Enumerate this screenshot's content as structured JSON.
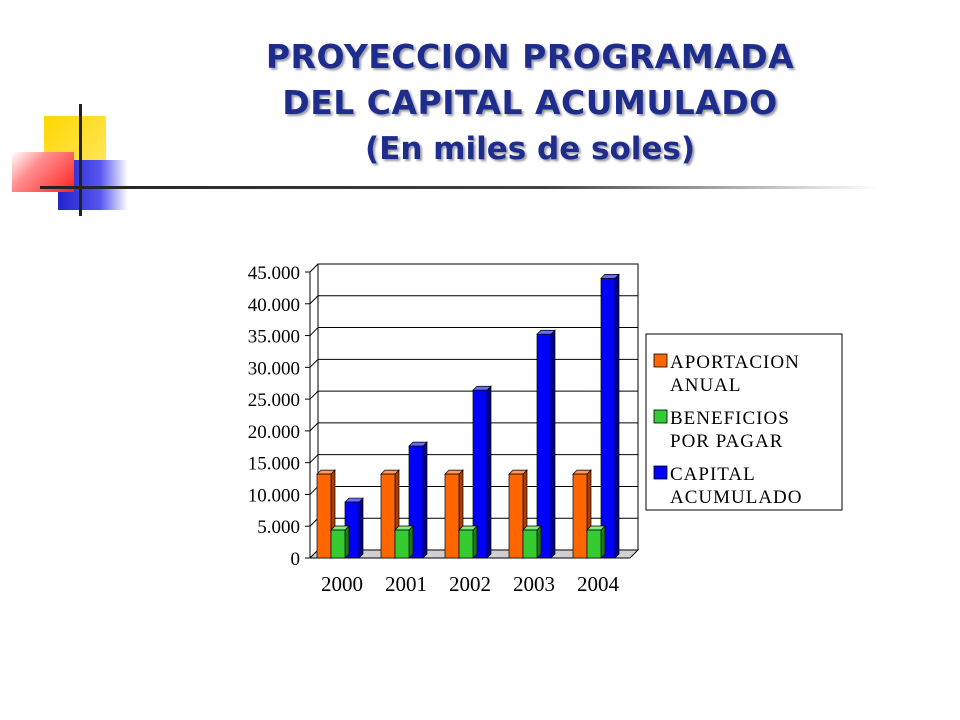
{
  "slide": {
    "title_line1": "PROYECCION PROGRAMADA",
    "title_line2": "DEL CAPITAL ACUMULADO",
    "title_line3": "(En miles de soles)"
  },
  "colors": {
    "title": "#1e2d8c",
    "aportacion": "#ff6600",
    "beneficios": "#33cc33",
    "capital": "#0000ff",
    "deco_yellow": "#ffd700",
    "deco_red": "#ff3333",
    "deco_blue": "#3333cc"
  },
  "chart_data": {
    "type": "bar",
    "title": "",
    "xlabel": "",
    "ylabel": "",
    "categories": [
      "2000",
      "2001",
      "2002",
      "2003",
      "2004"
    ],
    "series": [
      {
        "name": "APORTACION ANUAL",
        "values": [
          13200,
          13200,
          13200,
          13200,
          13200
        ]
      },
      {
        "name": "BENEFICIOS POR PAGAR",
        "values": [
          4400,
          4400,
          4400,
          4400,
          4400
        ]
      },
      {
        "name": "CAPITAL ACUMULADO",
        "values": [
          8800,
          17600,
          26400,
          35200,
          44000
        ]
      }
    ],
    "ylim": [
      0,
      45000
    ],
    "yticks": [
      "45.000",
      "40.000",
      "35.000",
      "30.000",
      "25.000",
      "20.000",
      "15.000",
      "10.000",
      "5.000",
      "0"
    ],
    "legend": {
      "position": "right",
      "entries": [
        {
          "line1": "APORTACION",
          "line2": "ANUAL"
        },
        {
          "line1": "BENEFICIOS",
          "line2": "POR PAGAR"
        },
        {
          "line1": "CAPITAL",
          "line2": "ACUMULADO"
        }
      ]
    },
    "grid": true
  }
}
